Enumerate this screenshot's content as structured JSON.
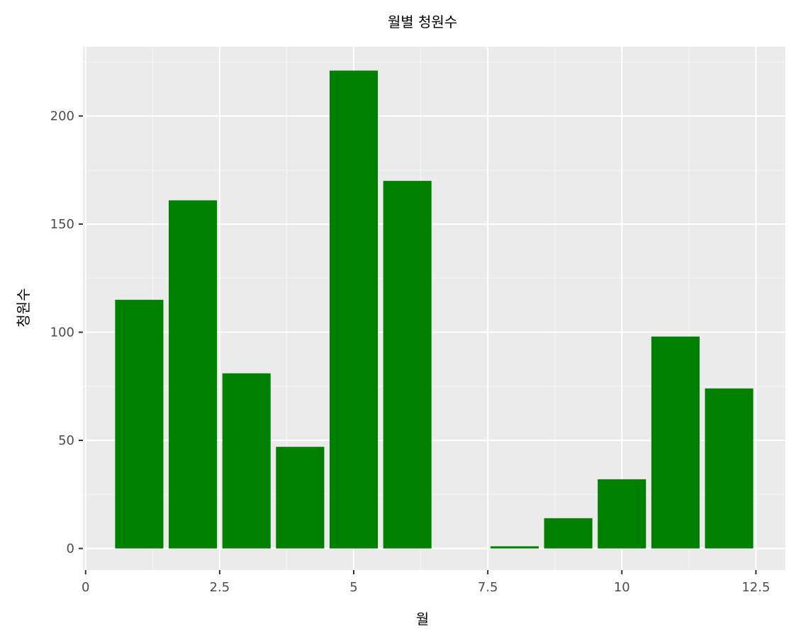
{
  "chart_data": {
    "type": "bar",
    "title": "월별 청원수",
    "xlabel": "월",
    "ylabel": "청원수",
    "x": [
      1,
      2,
      3,
      4,
      5,
      6,
      7,
      8,
      9,
      10,
      11,
      12
    ],
    "values": [
      115,
      161,
      81,
      47,
      221,
      170,
      0,
      1,
      14,
      32,
      98,
      74
    ],
    "xlim": [
      -0.05,
      13.05
    ],
    "ylim": [
      -10,
      232
    ],
    "xticks": [
      0,
      2.5,
      5,
      7.5,
      10,
      12.5
    ],
    "xtick_labels": [
      "0",
      "2.5",
      "5",
      "7.5",
      "10",
      "12.5"
    ],
    "yticks": [
      0,
      50,
      100,
      150,
      200
    ],
    "ytick_labels": [
      "0",
      "50",
      "100",
      "150",
      "200"
    ],
    "grid": true,
    "legend": "none",
    "colors": {
      "bar": "#008000",
      "panel": "#ebebeb",
      "grid": "#ffffff"
    }
  }
}
